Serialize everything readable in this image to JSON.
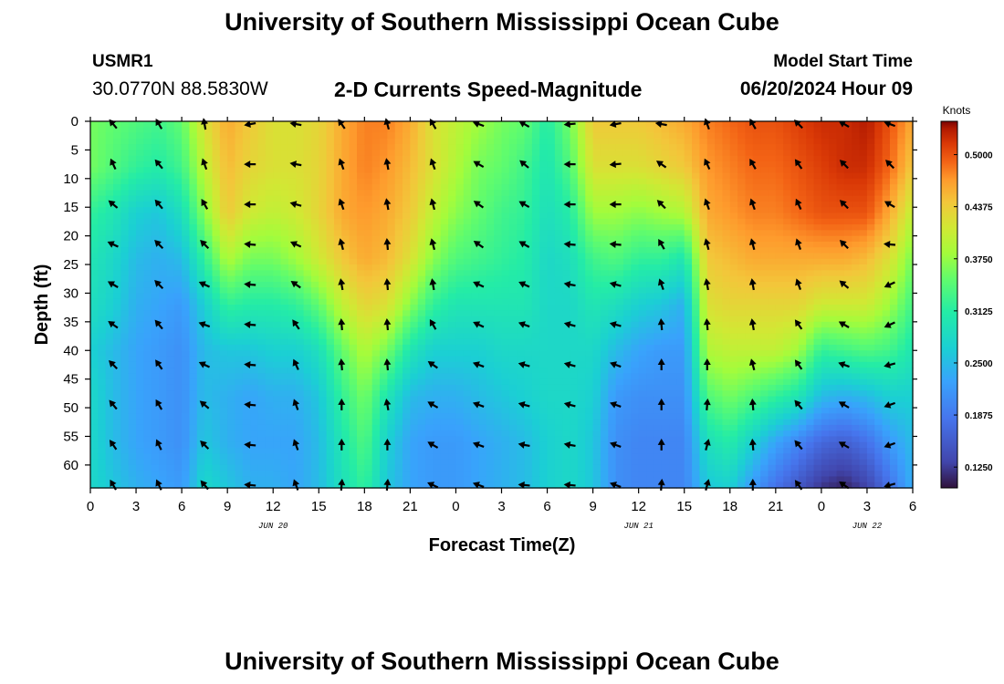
{
  "page": {
    "title_top": "University of Southern Mississippi Ocean Cube",
    "title_bottom": "University of Southern Mississippi Ocean Cube"
  },
  "station": {
    "id": "USMR1",
    "coords": "30.0770N  88.5830W"
  },
  "model": {
    "label": "Model Start Time",
    "value": "06/20/2024 Hour 09"
  },
  "chart_data": {
    "type": "heatmap",
    "title": "2-D Currents Speed-Magnitude",
    "xlabel": "Forecast Time(Z)",
    "ylabel": "Depth (ft)",
    "x_range": [
      0,
      54
    ],
    "y_range": [
      0,
      64
    ],
    "x_ticks": [
      0,
      3,
      6,
      9,
      12,
      15,
      18,
      21,
      24,
      27,
      30,
      33,
      36,
      39,
      42,
      45,
      48,
      51,
      54
    ],
    "x_tick_labels": [
      "0",
      "3",
      "6",
      "9",
      "12",
      "15",
      "18",
      "21",
      "0",
      "3",
      "6",
      "9",
      "12",
      "15",
      "18",
      "21",
      "0",
      "3",
      "6"
    ],
    "y_ticks": [
      0,
      5,
      10,
      15,
      20,
      25,
      30,
      35,
      40,
      45,
      50,
      55,
      60
    ],
    "y_tick_labels": [
      "0",
      "5",
      "10",
      "15",
      "20",
      "25",
      "30",
      "35",
      "40",
      "45",
      "50",
      "55",
      "60"
    ],
    "date_labels": [
      {
        "x": 12,
        "label": "JUN 20"
      },
      {
        "x": 36,
        "label": "JUN 21"
      },
      {
        "x": 51,
        "label": "JUN 22"
      }
    ],
    "colorbar": {
      "unit": "Knots",
      "range": [
        0.1,
        0.54
      ],
      "ticks": [
        0.125,
        0.1875,
        0.25,
        0.3125,
        0.375,
        0.4375,
        0.5
      ],
      "tick_labels": [
        "0.1250",
        "0.1875",
        "0.2500",
        "0.3125",
        "0.3750",
        "0.4375",
        "0.5000"
      ]
    },
    "field_hours": [
      0,
      1.5,
      3,
      4.5,
      6,
      7.5,
      9,
      10.5,
      12,
      13.5,
      15,
      16.5,
      18,
      19.5,
      21,
      22.5,
      24,
      25.5,
      27,
      28.5,
      30,
      31.5,
      33,
      34.5,
      36,
      37.5,
      39,
      40.5,
      42,
      43.5,
      45,
      46.5,
      48,
      49.5,
      51,
      52.5,
      54
    ],
    "field_depths": [
      0,
      8,
      16,
      24,
      32,
      40,
      48,
      56,
      64
    ],
    "speed_knots": [
      [
        0.36,
        0.36,
        0.32,
        0.3,
        0.29,
        0.27,
        0.28,
        0.28,
        0.28
      ],
      [
        0.35,
        0.34,
        0.3,
        0.28,
        0.27,
        0.25,
        0.25,
        0.25,
        0.26
      ],
      [
        0.34,
        0.32,
        0.27,
        0.25,
        0.24,
        0.23,
        0.23,
        0.23,
        0.24
      ],
      [
        0.33,
        0.31,
        0.26,
        0.24,
        0.23,
        0.22,
        0.22,
        0.22,
        0.23
      ],
      [
        0.35,
        0.33,
        0.29,
        0.25,
        0.22,
        0.21,
        0.21,
        0.21,
        0.22
      ],
      [
        0.42,
        0.4,
        0.37,
        0.32,
        0.27,
        0.25,
        0.25,
        0.26,
        0.28
      ],
      [
        0.46,
        0.45,
        0.44,
        0.39,
        0.32,
        0.26,
        0.24,
        0.24,
        0.26
      ],
      [
        0.44,
        0.43,
        0.41,
        0.36,
        0.31,
        0.26,
        0.23,
        0.23,
        0.24
      ],
      [
        0.42,
        0.42,
        0.4,
        0.36,
        0.31,
        0.27,
        0.24,
        0.23,
        0.24
      ],
      [
        0.42,
        0.42,
        0.41,
        0.38,
        0.32,
        0.27,
        0.24,
        0.23,
        0.23
      ],
      [
        0.43,
        0.43,
        0.43,
        0.41,
        0.35,
        0.29,
        0.26,
        0.25,
        0.25
      ],
      [
        0.46,
        0.46,
        0.46,
        0.44,
        0.4,
        0.35,
        0.32,
        0.3,
        0.29
      ],
      [
        0.48,
        0.48,
        0.47,
        0.46,
        0.43,
        0.39,
        0.36,
        0.34,
        0.32
      ],
      [
        0.48,
        0.47,
        0.46,
        0.45,
        0.42,
        0.36,
        0.3,
        0.27,
        0.26
      ],
      [
        0.46,
        0.45,
        0.44,
        0.42,
        0.37,
        0.3,
        0.25,
        0.23,
        0.23
      ],
      [
        0.42,
        0.42,
        0.4,
        0.37,
        0.32,
        0.27,
        0.24,
        0.22,
        0.22
      ],
      [
        0.4,
        0.39,
        0.37,
        0.34,
        0.3,
        0.27,
        0.24,
        0.22,
        0.22
      ],
      [
        0.38,
        0.36,
        0.35,
        0.33,
        0.3,
        0.27,
        0.25,
        0.23,
        0.23
      ],
      [
        0.36,
        0.35,
        0.33,
        0.32,
        0.3,
        0.28,
        0.26,
        0.24,
        0.24
      ],
      [
        0.35,
        0.33,
        0.32,
        0.31,
        0.3,
        0.28,
        0.27,
        0.25,
        0.25
      ],
      [
        0.31,
        0.3,
        0.29,
        0.28,
        0.28,
        0.28,
        0.28,
        0.27,
        0.27
      ],
      [
        0.36,
        0.34,
        0.31,
        0.29,
        0.28,
        0.28,
        0.28,
        0.28,
        0.28
      ],
      [
        0.44,
        0.42,
        0.38,
        0.33,
        0.3,
        0.28,
        0.27,
        0.26,
        0.26
      ],
      [
        0.44,
        0.42,
        0.38,
        0.34,
        0.29,
        0.25,
        0.22,
        0.21,
        0.21
      ],
      [
        0.44,
        0.42,
        0.37,
        0.32,
        0.27,
        0.23,
        0.21,
        0.2,
        0.2
      ],
      [
        0.45,
        0.43,
        0.38,
        0.32,
        0.26,
        0.22,
        0.21,
        0.2,
        0.2
      ],
      [
        0.46,
        0.44,
        0.39,
        0.3,
        0.24,
        0.22,
        0.21,
        0.2,
        0.2
      ],
      [
        0.48,
        0.47,
        0.46,
        0.44,
        0.42,
        0.39,
        0.34,
        0.29,
        0.26
      ],
      [
        0.49,
        0.48,
        0.47,
        0.45,
        0.43,
        0.4,
        0.36,
        0.31,
        0.27
      ],
      [
        0.5,
        0.49,
        0.48,
        0.46,
        0.43,
        0.4,
        0.34,
        0.27,
        0.22
      ],
      [
        0.5,
        0.49,
        0.48,
        0.46,
        0.43,
        0.4,
        0.32,
        0.23,
        0.18
      ],
      [
        0.51,
        0.5,
        0.49,
        0.46,
        0.43,
        0.38,
        0.3,
        0.2,
        0.15
      ],
      [
        0.52,
        0.51,
        0.5,
        0.46,
        0.41,
        0.32,
        0.25,
        0.17,
        0.12
      ],
      [
        0.52,
        0.52,
        0.5,
        0.46,
        0.41,
        0.33,
        0.24,
        0.16,
        0.11
      ],
      [
        0.53,
        0.52,
        0.5,
        0.45,
        0.41,
        0.34,
        0.25,
        0.18,
        0.13
      ],
      [
        0.5,
        0.49,
        0.46,
        0.42,
        0.38,
        0.33,
        0.27,
        0.22,
        0.18
      ],
      [
        0.46,
        0.44,
        0.4,
        0.36,
        0.33,
        0.3,
        0.27,
        0.25,
        0.24
      ]
    ],
    "arrow_hours": [
      1.5,
      4.5,
      7.5,
      10.5,
      13.5,
      16.5,
      19.5,
      22.5,
      25.5,
      28.5,
      31.5,
      34.5,
      37.5,
      40.5,
      43.5,
      46.5,
      49.5,
      52.5
    ],
    "arrow_depths": [
      0.5,
      7.5,
      14.5,
      21.5,
      28.5,
      35.5,
      42.5,
      49.5,
      56.5,
      63.5
    ],
    "direction_deg": [
      [
        220,
        205,
        230,
        245,
        240,
        235,
        225,
        220,
        215,
        210
      ],
      [
        210,
        220,
        220,
        225,
        225,
        220,
        215,
        210,
        205,
        205
      ],
      [
        190,
        200,
        210,
        225,
        245,
        250,
        245,
        230,
        225,
        220
      ],
      [
        280,
        270,
        270,
        265,
        265,
        265,
        265,
        265,
        265,
        265
      ],
      [
        260,
        260,
        255,
        245,
        235,
        215,
        205,
        200,
        200,
        200
      ],
      [
        215,
        200,
        200,
        195,
        190,
        185,
        185,
        180,
        180,
        175
      ],
      [
        195,
        190,
        190,
        185,
        185,
        185,
        185,
        190,
        180,
        175
      ],
      [
        210,
        200,
        195,
        195,
        190,
        210,
        235,
        240,
        240,
        245
      ],
      [
        250,
        240,
        235,
        235,
        245,
        245,
        250,
        250,
        250,
        250
      ],
      [
        240,
        230,
        240,
        240,
        245,
        250,
        255,
        255,
        260,
        265
      ],
      [
        275,
        270,
        270,
        265,
        260,
        255,
        255,
        255,
        260,
        265
      ],
      [
        280,
        275,
        270,
        265,
        255,
        255,
        250,
        250,
        250,
        250
      ],
      [
        260,
        235,
        225,
        210,
        200,
        185,
        180,
        180,
        180,
        175
      ],
      [
        200,
        205,
        200,
        195,
        190,
        185,
        180,
        175,
        165,
        165
      ],
      [
        210,
        210,
        200,
        195,
        190,
        190,
        195,
        185,
        185,
        180
      ],
      [
        225,
        215,
        205,
        200,
        200,
        215,
        215,
        220,
        220,
        215
      ],
      [
        240,
        225,
        225,
        225,
        230,
        240,
        250,
        240,
        240,
        235
      ],
      [
        250,
        225,
        240,
        265,
        295,
        295,
        285,
        290,
        290,
        285
      ]
    ]
  }
}
